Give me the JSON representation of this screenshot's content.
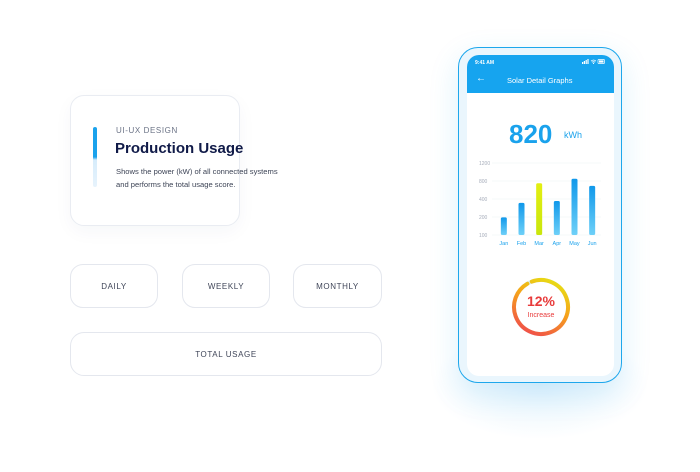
{
  "card": {
    "kicker": "UI-UX DESIGN",
    "title": "Production Usage",
    "description": "Shows the power (kW) of all connected systems and performs the total usage score."
  },
  "buttons": {
    "daily": "DAILY",
    "weekly": "WEEKLY",
    "monthly": "MONTHLY",
    "total": "TOTAL USAGE"
  },
  "phone": {
    "status_time": "9:41 AM",
    "status_icons": "signal-wifi-battery",
    "back_icon": "back-arrow-icon",
    "title": "Solar Detail Graphs",
    "total_value": "820",
    "total_unit": "kWh",
    "gauge": {
      "percent": "12%",
      "label": "Increase",
      "fraction": 0.12
    }
  },
  "colors": {
    "accent_blue": "#16a4ef",
    "highlight_yellow": "#e7ef16",
    "gauge_red": "#e83b3b"
  },
  "chart_data": {
    "type": "bar",
    "categories": [
      "Jan",
      "Feb",
      "Mar",
      "Apr",
      "May",
      "Jun"
    ],
    "values": [
      370,
      590,
      890,
      620,
      960,
      850
    ],
    "highlight_index": 2,
    "yticks": [
      100,
      200,
      400,
      800,
      1200
    ],
    "ylim": [
      100,
      1200
    ],
    "title": "",
    "xlabel": "",
    "ylabel": ""
  }
}
